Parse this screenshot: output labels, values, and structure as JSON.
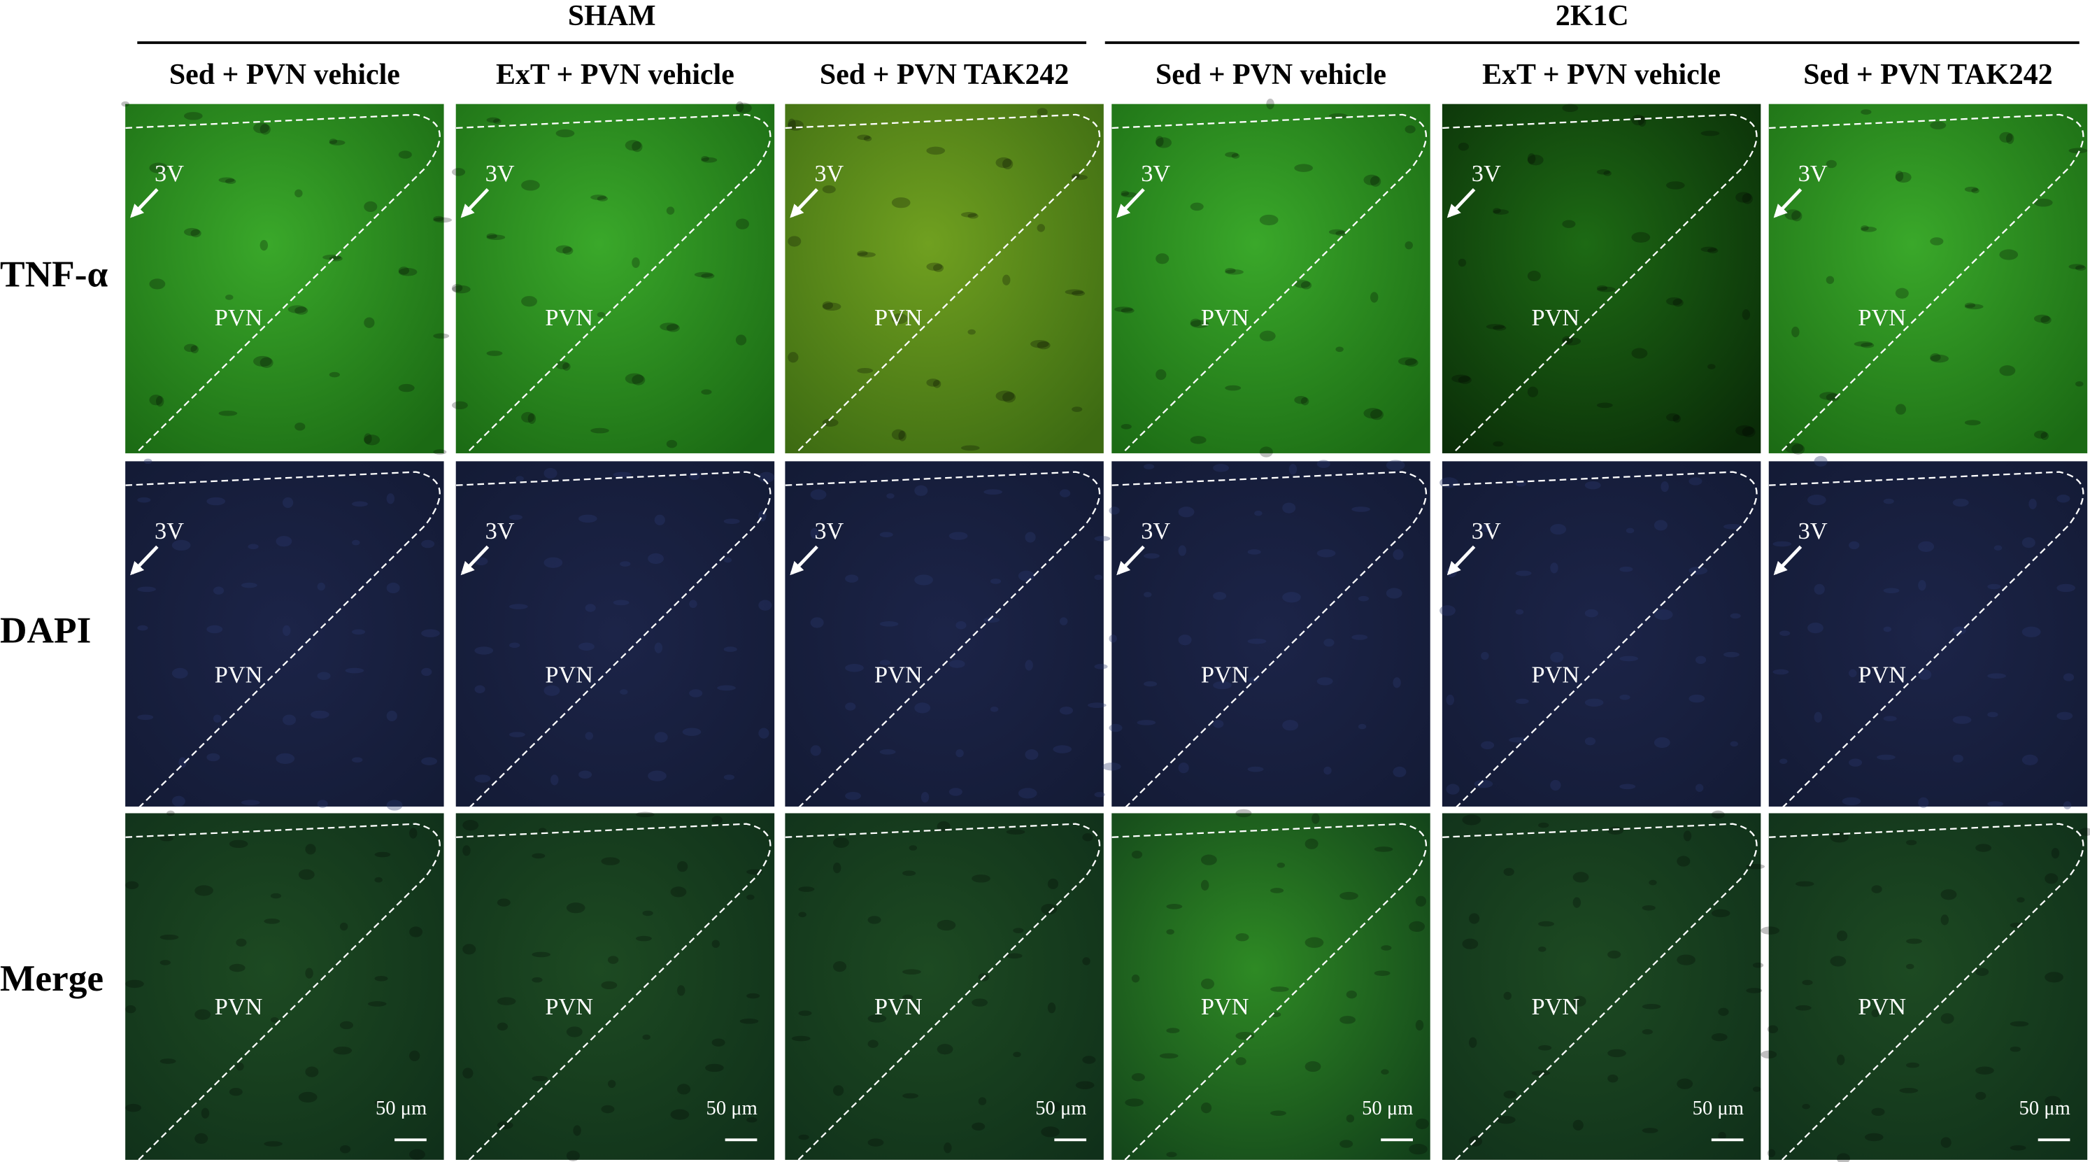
{
  "groups": [
    "SHAM",
    "2K1C"
  ],
  "columns": [
    "Sed + PVN vehicle",
    "ExT + PVN vehicle",
    "Sed + PVN TAK242",
    "Sed + PVN vehicle",
    "ExT + PVN vehicle",
    "Sed + PVN TAK242"
  ],
  "rows": [
    "TNF-α",
    "DAPI",
    "Merge"
  ],
  "labels": {
    "ventricle": "3V",
    "nucleus": "PVN",
    "scale_bar": "50 μm"
  }
}
